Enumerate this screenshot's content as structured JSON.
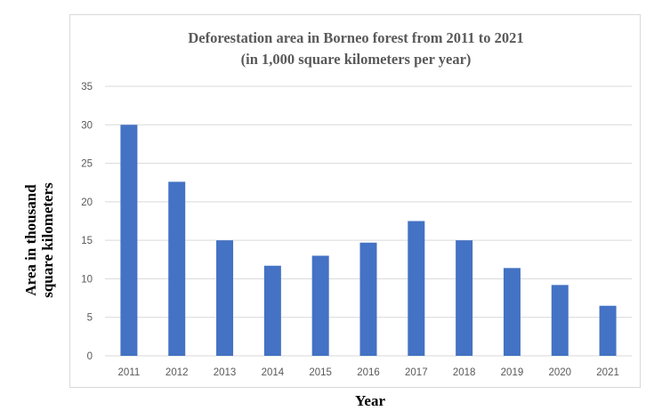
{
  "chart_data": {
    "type": "bar",
    "title": "Deforestation area in Borneo forest from 2011 to 2021",
    "subtitle": "(in 1,000 square kilometers per year)",
    "xlabel": "Year",
    "ylabel_lines": [
      "Area in thousand",
      "square kilometers"
    ],
    "categories": [
      "2011",
      "2012",
      "2013",
      "2014",
      "2015",
      "2016",
      "2017",
      "2018",
      "2019",
      "2020",
      "2021"
    ],
    "values": [
      30,
      22.6,
      15,
      11.7,
      13,
      14.7,
      17.5,
      15,
      11.4,
      9.2,
      6.5
    ],
    "ylim": [
      0,
      35
    ],
    "yticks": [
      0,
      5,
      10,
      15,
      20,
      25,
      30,
      35
    ],
    "grid": true,
    "bar_color": "#4472c4"
  }
}
